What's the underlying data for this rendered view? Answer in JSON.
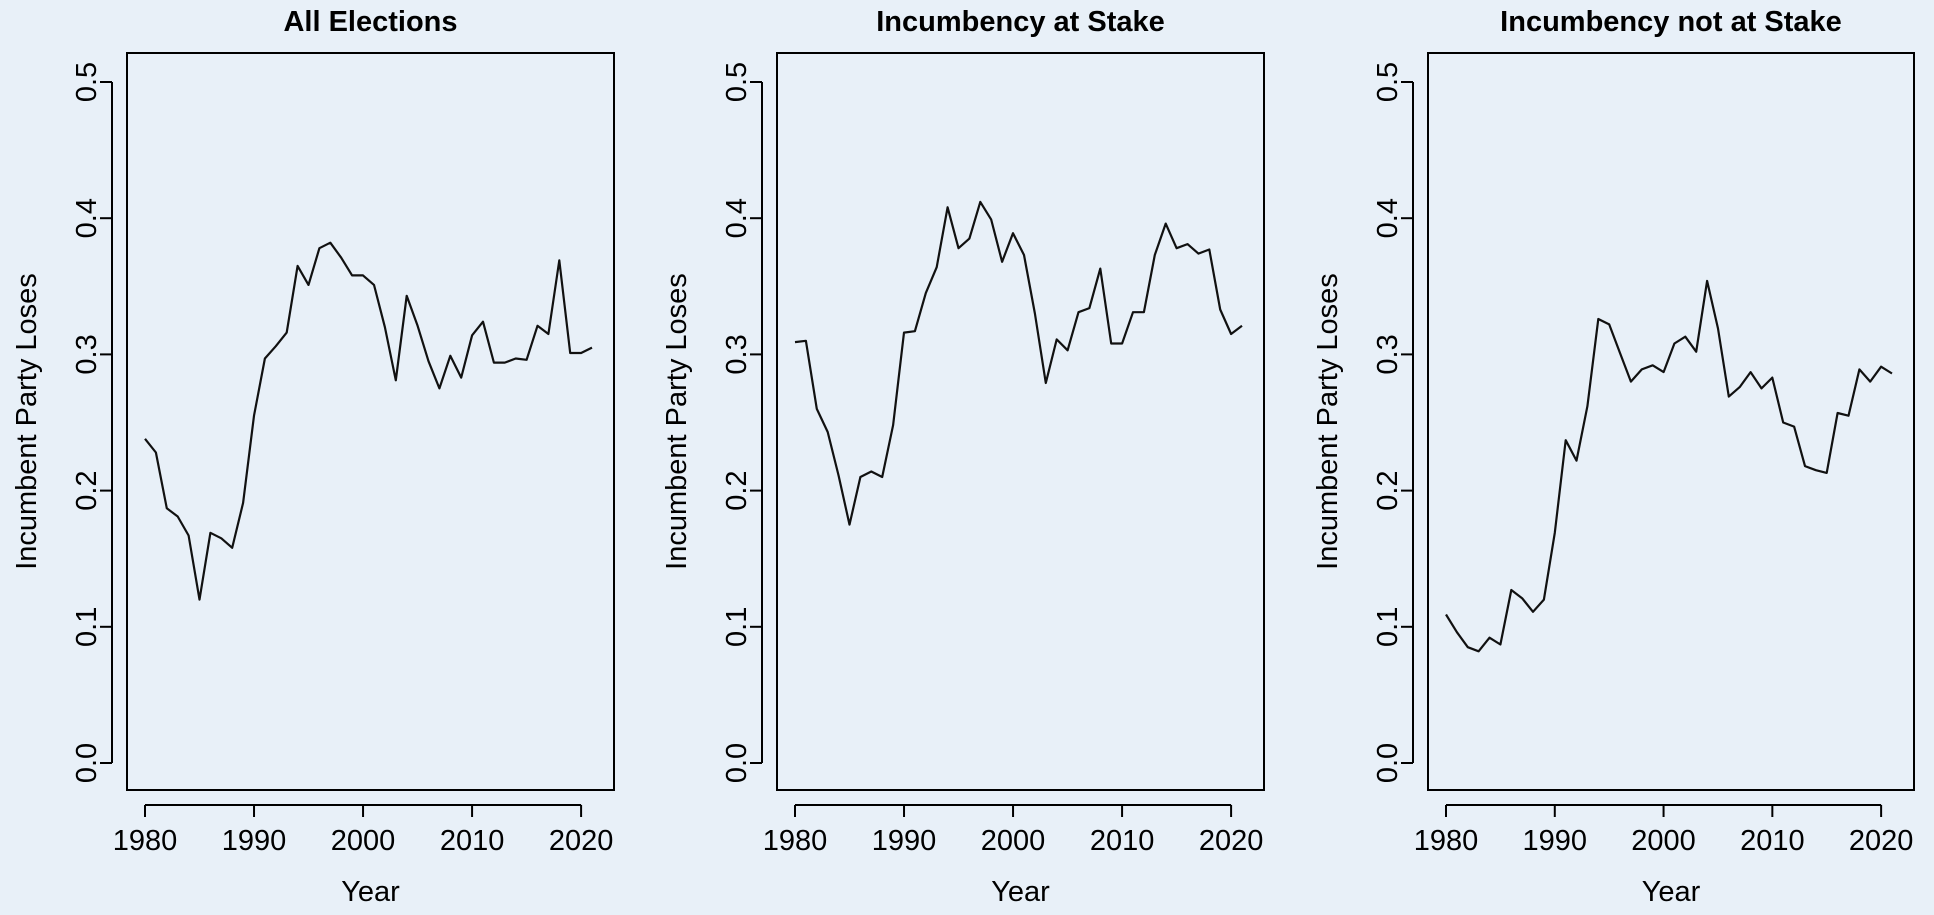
{
  "chart_data": [
    {
      "type": "line",
      "title": "All Elections",
      "xlabel": "Year",
      "ylabel": "Incumbent Party Loses",
      "xlim": [
        1980,
        2021
      ],
      "ylim": [
        0,
        0.5
      ],
      "xticks": [
        "1980",
        "1990",
        "2000",
        "2010",
        "2020"
      ],
      "yticks": [
        "0.0",
        "0.1",
        "0.2",
        "0.3",
        "0.4",
        "0.5"
      ],
      "x": [
        1980,
        1981,
        1982,
        1983,
        1984,
        1985,
        1986,
        1987,
        1988,
        1989,
        1990,
        1991,
        1992,
        1993,
        1994,
        1995,
        1996,
        1997,
        1998,
        1999,
        2000,
        2001,
        2002,
        2003,
        2004,
        2005,
        2006,
        2007,
        2008,
        2009,
        2010,
        2011,
        2012,
        2013,
        2014,
        2015,
        2016,
        2017,
        2018,
        2019,
        2020,
        2021
      ],
      "y": [
        0.238,
        0.228,
        0.187,
        0.181,
        0.167,
        0.12,
        0.169,
        0.165,
        0.158,
        0.191,
        0.255,
        0.297,
        0.306,
        0.316,
        0.365,
        0.351,
        0.378,
        0.382,
        0.371,
        0.358,
        0.358,
        0.351,
        0.32,
        0.281,
        0.343,
        0.321,
        0.295,
        0.275,
        0.299,
        0.283,
        0.314,
        0.324,
        0.294,
        0.294,
        0.297,
        0.296,
        0.321,
        0.315,
        0.369,
        0.301,
        0.301,
        0.305
      ]
    },
    {
      "type": "line",
      "title": "Incumbency at Stake",
      "xlabel": "Year",
      "ylabel": "Incumbent Party Loses",
      "xlim": [
        1980,
        2021
      ],
      "ylim": [
        0,
        0.5
      ],
      "xticks": [
        "1980",
        "1990",
        "2000",
        "2010",
        "2020"
      ],
      "yticks": [
        "0.0",
        "0.1",
        "0.2",
        "0.3",
        "0.4",
        "0.5"
      ],
      "x": [
        1980,
        1981,
        1982,
        1983,
        1984,
        1985,
        1986,
        1987,
        1988,
        1989,
        1990,
        1991,
        1992,
        1993,
        1994,
        1995,
        1996,
        1997,
        1998,
        1999,
        2000,
        2001,
        2002,
        2003,
        2004,
        2005,
        2006,
        2007,
        2008,
        2009,
        2010,
        2011,
        2012,
        2013,
        2014,
        2015,
        2016,
        2017,
        2018,
        2019,
        2020,
        2021
      ],
      "y": [
        0.309,
        0.31,
        0.26,
        0.243,
        0.211,
        0.175,
        0.21,
        0.214,
        0.21,
        0.248,
        0.316,
        0.317,
        0.345,
        0.364,
        0.408,
        0.378,
        0.385,
        0.412,
        0.399,
        0.368,
        0.389,
        0.373,
        0.33,
        0.279,
        0.311,
        0.303,
        0.331,
        0.334,
        0.363,
        0.308,
        0.308,
        0.331,
        0.331,
        0.373,
        0.396,
        0.378,
        0.381,
        0.374,
        0.377,
        0.333,
        0.315,
        0.321
      ]
    },
    {
      "type": "line",
      "title": "Incumbency not at Stake",
      "xlabel": "Year",
      "ylabel": "Incumbent Party Loses",
      "xlim": [
        1980,
        2021
      ],
      "ylim": [
        0,
        0.5
      ],
      "xticks": [
        "1980",
        "1990",
        "2000",
        "2010",
        "2020"
      ],
      "yticks": [
        "0.0",
        "0.1",
        "0.2",
        "0.3",
        "0.4",
        "0.5"
      ],
      "x": [
        1980,
        1981,
        1982,
        1983,
        1984,
        1985,
        1986,
        1987,
        1988,
        1989,
        1990,
        1991,
        1992,
        1993,
        1994,
        1995,
        1996,
        1997,
        1998,
        1999,
        2000,
        2001,
        2002,
        2003,
        2004,
        2005,
        2006,
        2007,
        2008,
        2009,
        2010,
        2011,
        2012,
        2013,
        2014,
        2015,
        2016,
        2017,
        2018,
        2019,
        2020,
        2021
      ],
      "y": [
        0.109,
        0.096,
        0.085,
        0.082,
        0.092,
        0.087,
        0.127,
        0.121,
        0.111,
        0.12,
        0.169,
        0.237,
        0.222,
        0.262,
        0.326,
        0.322,
        0.301,
        0.28,
        0.289,
        0.292,
        0.287,
        0.308,
        0.313,
        0.302,
        0.354,
        0.319,
        0.269,
        0.276,
        0.287,
        0.275,
        0.283,
        0.25,
        0.247,
        0.218,
        0.215,
        0.213,
        0.257,
        0.255,
        0.289,
        0.28,
        0.291,
        0.286
      ]
    }
  ]
}
